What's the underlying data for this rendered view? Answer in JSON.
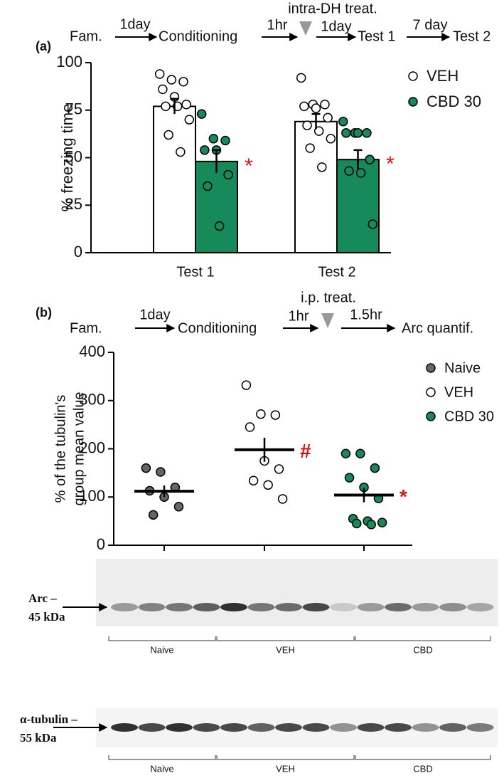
{
  "timeline_a": {
    "panel": "(a)",
    "steps": [
      "Fam.",
      "Conditioning",
      "Test 1",
      "Test 2"
    ],
    "intervals": [
      "1day",
      "1hr",
      "1day",
      "7 day"
    ],
    "treatment": "intra-DH treat."
  },
  "timeline_b": {
    "panel": "(b)",
    "steps": [
      "Fam.",
      "Conditioning",
      "Arc quantif."
    ],
    "intervals": [
      "1day",
      "1hr",
      "1.5hr"
    ],
    "treatment": "i.p. treat."
  },
  "chart_data": [
    {
      "type": "bar",
      "ylabel": "% freezing time",
      "categories": [
        "Test 1",
        "Test 2"
      ],
      "ylim": [
        0,
        100
      ],
      "yticks": [
        0,
        25,
        50,
        75,
        100
      ],
      "series": [
        {
          "name": "VEH",
          "color": "#ffffff",
          "values": [
            77,
            69
          ],
          "errors": [
            4,
            4
          ],
          "points": [
            [
              94,
              91,
              90,
              86,
              82,
              78,
              77,
              77,
              70,
              62,
              53
            ],
            [
              92,
              78,
              78,
              77,
              76,
              71,
              67,
              64,
              60,
              55,
              45
            ]
          ]
        },
        {
          "name": "CBD 30",
          "color": "#178a5b",
          "values": [
            48,
            49
          ],
          "errors": [
            6,
            5
          ],
          "sig": [
            "*",
            "*"
          ],
          "points": [
            [
              73,
              60,
              59,
              54,
              54,
              41,
              35,
              14
            ],
            [
              69,
              63,
              63,
              63,
              63,
              49,
              43,
              42,
              15
            ]
          ]
        }
      ]
    },
    {
      "type": "scatter",
      "ylabel": [
        "% of the tubulin's",
        "group mean value"
      ],
      "ylim": [
        0,
        400
      ],
      "yticks": [
        0,
        100,
        200,
        300,
        400
      ],
      "series": [
        {
          "name": "Naive",
          "color": "#666666",
          "mean": 112,
          "error": 12,
          "values": [
            160,
            152,
            120,
            113,
            100,
            80,
            63
          ]
        },
        {
          "name": "VEH",
          "color": "#ffffff",
          "mean": 198,
          "error": 25,
          "sig": "#",
          "values": [
            332,
            272,
            270,
            245,
            175,
            158,
            134,
            125,
            96
          ]
        },
        {
          "name": "CBD 30",
          "color": "#178a5b",
          "mean": 104,
          "error": 15,
          "sig": "*",
          "values": [
            190,
            190,
            160,
            140,
            120,
            97,
            55,
            50,
            47,
            45,
            43
          ]
        }
      ]
    }
  ],
  "blots": [
    {
      "label": "Arc –",
      "size": "45 kDa",
      "groups": [
        "Naive",
        "VEH",
        "CBD"
      ]
    },
    {
      "label": "α-tubulin –",
      "size": "55 kDa",
      "groups": [
        "Naive",
        "VEH",
        "CBD"
      ]
    }
  ]
}
